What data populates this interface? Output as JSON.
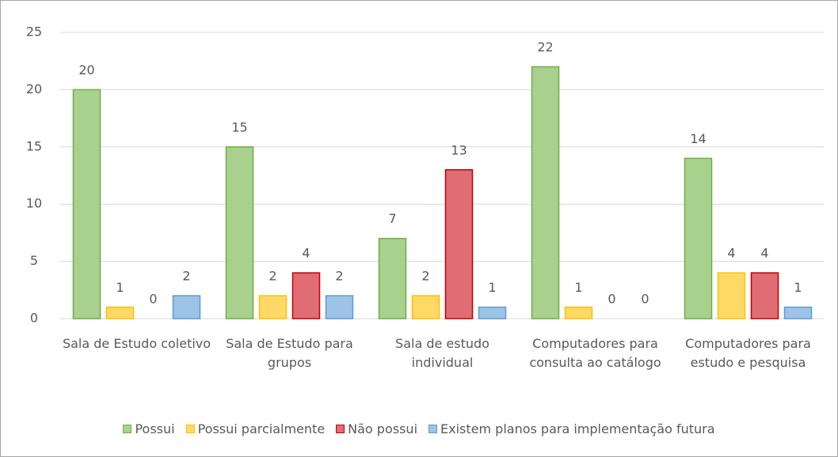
{
  "chart_data": {
    "type": "bar",
    "categories": [
      "Sala de Estudo coletivo",
      "Sala de Estudo para grupos",
      "Sala de estudo individual",
      "Computadores para consulta ao catálogo",
      "Computadores para estudo e pesquisa"
    ],
    "series": [
      {
        "name": "Possui",
        "color": "#a9d18e",
        "values": [
          20,
          15,
          7,
          22,
          14
        ]
      },
      {
        "name": "Possui parcialmente",
        "color": "#ffd966",
        "values": [
          1,
          2,
          2,
          1,
          4
        ]
      },
      {
        "name": "Não possui",
        "color": "#e06c75",
        "values": [
          0,
          4,
          13,
          0,
          4
        ]
      },
      {
        "name": "Existem planos para implementação futura",
        "color": "#9dc3e6",
        "values": [
          2,
          2,
          1,
          0,
          1
        ]
      }
    ],
    "ylim": [
      0,
      25
    ],
    "yticks": [
      0,
      5,
      10,
      15,
      20,
      25
    ],
    "grid": true,
    "legend": "bottom"
  }
}
